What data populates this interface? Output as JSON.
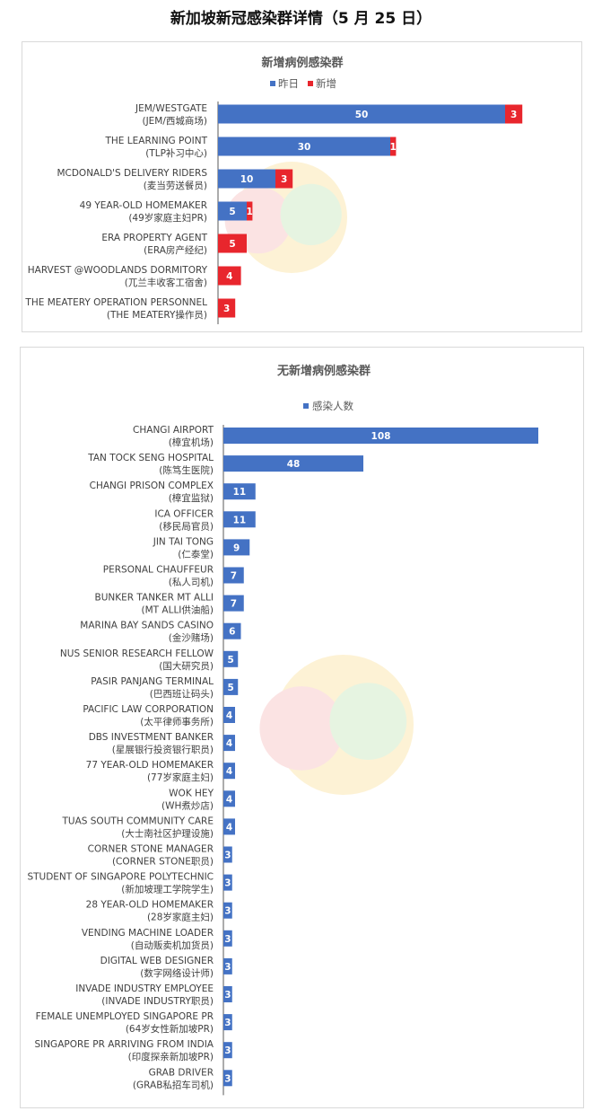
{
  "page": {
    "title": "新加坡新冠感染群详情（5 月 25 日）"
  },
  "colors": {
    "blue": "#4472C4",
    "red": "#E8262D"
  },
  "chart_data": [
    {
      "type": "bar",
      "orientation": "horizontal",
      "stacked": true,
      "title": "新增病例感染群",
      "legend_position": "top-right",
      "categories": [
        [
          "JEM/WESTGATE",
          "(JEM/西城商场)"
        ],
        [
          "THE LEARNING POINT",
          "(TLP补习中心)"
        ],
        [
          "MCDONALD'S DELIVERY RIDERS",
          "(麦当劳送餐员)"
        ],
        [
          "49 YEAR-OLD HOMEMAKER",
          "(49岁家庭主妇PR)"
        ],
        [
          "ERA PROPERTY AGENT",
          "(ERA房产经纪)"
        ],
        [
          "HARVEST @WOODLANDS DORMITORY",
          "(兀兰丰收客工宿舍)"
        ],
        [
          "THE MEATERY OPERATION PERSONNEL",
          "(THE MEATERY操作员)"
        ]
      ],
      "series": [
        {
          "name": "昨日",
          "color": "#4472C4",
          "values": [
            50,
            30,
            10,
            5,
            0,
            0,
            0
          ]
        },
        {
          "name": "新增",
          "color": "#E8262D",
          "values": [
            3,
            1,
            3,
            1,
            5,
            4,
            3
          ]
        }
      ],
      "xlim": [
        0,
        60
      ]
    },
    {
      "type": "bar",
      "orientation": "horizontal",
      "title": "无新增病例感染群",
      "legend_position": "top",
      "categories": [
        [
          "CHANGI AIRPORT",
          "(樟宜机场)"
        ],
        [
          "TAN TOCK SENG HOSPITAL",
          "(陈笃生医院)"
        ],
        [
          "CHANGI PRISON COMPLEX",
          "(樟宜监狱)"
        ],
        [
          "ICA OFFICER",
          "(移民局官员)"
        ],
        [
          "JIN TAI TONG",
          "(仁泰堂)"
        ],
        [
          "PERSONAL CHAUFFEUR",
          "(私人司机)"
        ],
        [
          "BUNKER TANKER MT ALLI",
          "(MT ALLI供油船)"
        ],
        [
          "MARINA BAY SANDS CASINO",
          "(金沙赌场)"
        ],
        [
          "NUS SENIOR RESEARCH FELLOW",
          "(国大研究员)"
        ],
        [
          "PASIR PANJANG TERMINAL",
          "(巴西班让码头)"
        ],
        [
          "PACIFIC LAW CORPORATION",
          "(太平律师事务所)"
        ],
        [
          "DBS INVESTMENT BANKER",
          "(星展银行投资银行职员)"
        ],
        [
          "77 YEAR-OLD HOMEMAKER",
          "(77岁家庭主妇)"
        ],
        [
          "WOK HEY",
          "(WH煮炒店)"
        ],
        [
          "TUAS SOUTH COMMUNITY CARE",
          "(大士南社区护理设施)"
        ],
        [
          "CORNER STONE MANAGER",
          "(CORNER STONE职员)"
        ],
        [
          "STUDENT OF SINGAPORE POLYTECHNIC",
          "(新加坡理工学院学生)"
        ],
        [
          "28 YEAR-OLD HOMEMAKER",
          "(28岁家庭主妇)"
        ],
        [
          "VENDING MACHINE LOADER",
          "(自动贩卖机加货员)"
        ],
        [
          "DIGITAL WEB DESIGNER",
          "(数字网络设计师)"
        ],
        [
          "INVADE INDUSTRY EMPLOYEE",
          "(INVADE INDUSTRY职员)"
        ],
        [
          "FEMALE UNEMPLOYED SINGAPORE PR",
          "(64岁女性新加坡PR)"
        ],
        [
          "SINGAPORE PR ARRIVING FROM INDIA",
          "(印度探亲新加坡PR)"
        ],
        [
          "GRAB DRIVER",
          "(GRAB私招车司机)"
        ]
      ],
      "series": [
        {
          "name": "感染人数",
          "color": "#4472C4",
          "values": [
            108,
            48,
            11,
            11,
            9,
            7,
            7,
            6,
            5,
            5,
            4,
            4,
            4,
            4,
            4,
            3,
            3,
            3,
            3,
            3,
            3,
            3,
            3,
            3
          ]
        }
      ],
      "xlim": [
        0,
        108
      ]
    }
  ]
}
